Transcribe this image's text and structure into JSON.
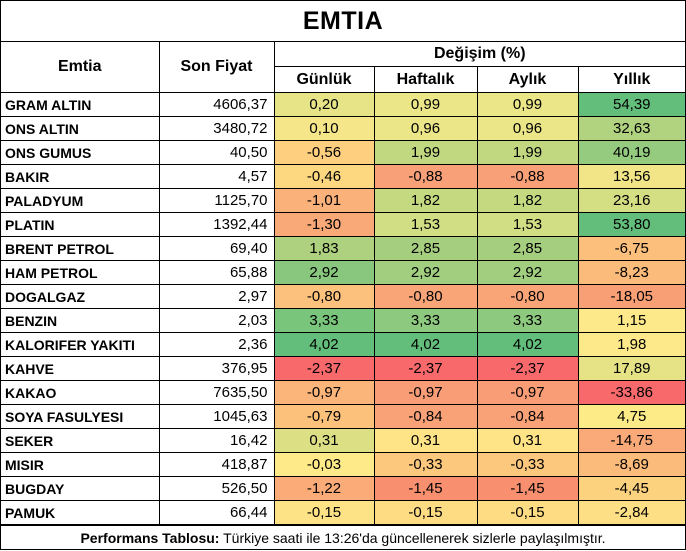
{
  "title": "EMTIA",
  "headers": {
    "emtia": "Emtia",
    "son_fiyat": "Son Fiyat",
    "degisim": "Değişim (%)",
    "gunluk": "Günlük",
    "haftalik": "Haftalık",
    "aylik": "Aylık",
    "yillik": "Yıllık"
  },
  "rows": [
    {
      "name": "GRAM ALTIN",
      "price": "4606,37",
      "cells": [
        {
          "v": "0,20",
          "c": "#e7e387"
        },
        {
          "v": "0,99",
          "c": "#ebe688"
        },
        {
          "v": "0,99",
          "c": "#ebe688"
        },
        {
          "v": "54,39",
          "c": "#63be7b"
        }
      ]
    },
    {
      "name": "ONS ALTIN",
      "price": "3480,72",
      "cells": [
        {
          "v": "0,10",
          "c": "#f6e68a"
        },
        {
          "v": "0,96",
          "c": "#ebe688"
        },
        {
          "v": "0,96",
          "c": "#ebe688"
        },
        {
          "v": "32,63",
          "c": "#b1d380"
        }
      ]
    },
    {
      "name": "ONS GUMUS",
      "price": "40,50",
      "cells": [
        {
          "v": "-0,56",
          "c": "#fdcf7e"
        },
        {
          "v": "1,99",
          "c": "#c1d880"
        },
        {
          "v": "1,99",
          "c": "#c1d880"
        },
        {
          "v": "40,19",
          "c": "#94cb7e"
        }
      ]
    },
    {
      "name": "BAKIR",
      "price": "4,57",
      "cells": [
        {
          "v": "-0,46",
          "c": "#fdd880"
        },
        {
          "v": "-0,88",
          "c": "#f8a077"
        },
        {
          "v": "-0,88",
          "c": "#f8a077"
        },
        {
          "v": "13,56",
          "c": "#f1e588"
        }
      ]
    },
    {
      "name": "PALADYUM",
      "price": "1125,70",
      "cells": [
        {
          "v": "-1,01",
          "c": "#fbb17a"
        },
        {
          "v": "1,82",
          "c": "#c5d981"
        },
        {
          "v": "1,82",
          "c": "#c5d981"
        },
        {
          "v": "23,16",
          "c": "#d4de83"
        }
      ]
    },
    {
      "name": "PLATIN",
      "price": "1392,44",
      "cells": [
        {
          "v": "-1,30",
          "c": "#f9a877"
        },
        {
          "v": "1,53",
          "c": "#d2de84"
        },
        {
          "v": "1,53",
          "c": "#d2de84"
        },
        {
          "v": "53,80",
          "c": "#63be7b"
        }
      ]
    },
    {
      "name": "BRENT PETROL",
      "price": "69,40",
      "cells": [
        {
          "v": "1,83",
          "c": "#aed17f"
        },
        {
          "v": "2,85",
          "c": "#a5cf7f"
        },
        {
          "v": "2,85",
          "c": "#a5cf7f"
        },
        {
          "v": "-6,75",
          "c": "#fcc07c"
        }
      ]
    },
    {
      "name": "HAM PETROL",
      "price": "65,88",
      "cells": [
        {
          "v": "2,92",
          "c": "#88c77d"
        },
        {
          "v": "2,92",
          "c": "#a2ce7f"
        },
        {
          "v": "2,92",
          "c": "#a2ce7f"
        },
        {
          "v": "-8,23",
          "c": "#fbbb7b"
        }
      ]
    },
    {
      "name": "DOGALGAZ",
      "price": "2,97",
      "cells": [
        {
          "v": "-0,80",
          "c": "#fcc17c"
        },
        {
          "v": "-0,80",
          "c": "#f9a577"
        },
        {
          "v": "-0,80",
          "c": "#f9a577"
        },
        {
          "v": "-18,05",
          "c": "#f99f76"
        }
      ]
    },
    {
      "name": "BENZIN",
      "price": "2,03",
      "cells": [
        {
          "v": "3,33",
          "c": "#7ac57c"
        },
        {
          "v": "3,33",
          "c": "#8dc97e"
        },
        {
          "v": "3,33",
          "c": "#8dc97e"
        },
        {
          "v": "1,15",
          "c": "#fde98a"
        }
      ]
    },
    {
      "name": "KALORIFER YAKITI",
      "price": "2,36",
      "cells": [
        {
          "v": "4,02",
          "c": "#63be7b"
        },
        {
          "v": "4,02",
          "c": "#63be7b"
        },
        {
          "v": "4,02",
          "c": "#63be7b"
        },
        {
          "v": "1,98",
          "c": "#fde98a"
        }
      ]
    },
    {
      "name": "KAHVE",
      "price": "376,95",
      "cells": [
        {
          "v": "-2,37",
          "c": "#f8696b"
        },
        {
          "v": "-2,37",
          "c": "#f8696b"
        },
        {
          "v": "-2,37",
          "c": "#f8696b"
        },
        {
          "v": "17,89",
          "c": "#e5e386"
        }
      ]
    },
    {
      "name": "KAKAO",
      "price": "7635,50",
      "cells": [
        {
          "v": "-0,97",
          "c": "#fbb47a"
        },
        {
          "v": "-0,97",
          "c": "#f89d76"
        },
        {
          "v": "-0,97",
          "c": "#f89d76"
        },
        {
          "v": "-33,86",
          "c": "#f8696b"
        }
      ]
    },
    {
      "name": "SOYA FASULYESI",
      "price": "1045,63",
      "cells": [
        {
          "v": "-0,79",
          "c": "#fcc27c"
        },
        {
          "v": "-0,84",
          "c": "#f9a277"
        },
        {
          "v": "-0,84",
          "c": "#f9a277"
        },
        {
          "v": "4,75",
          "c": "#fdeb88"
        }
      ]
    },
    {
      "name": "SEKER",
      "price": "16,42",
      "cells": [
        {
          "v": "0,31",
          "c": "#dcdf84"
        },
        {
          "v": "0,31",
          "c": "#fee487"
        },
        {
          "v": "0,31",
          "c": "#fee487"
        },
        {
          "v": "-14,75",
          "c": "#faaa78"
        }
      ]
    },
    {
      "name": "MISIR",
      "price": "418,87",
      "cells": [
        {
          "v": "-0,03",
          "c": "#feea89"
        },
        {
          "v": "-0,33",
          "c": "#fcc87d"
        },
        {
          "v": "-0,33",
          "c": "#fcc87d"
        },
        {
          "v": "-8,69",
          "c": "#fbbb7b"
        }
      ]
    },
    {
      "name": "BUGDAY",
      "price": "526,50",
      "cells": [
        {
          "v": "-1,22",
          "c": "#faab78"
        },
        {
          "v": "-1,45",
          "c": "#f8906f"
        },
        {
          "v": "-1,45",
          "c": "#f8906f"
        },
        {
          "v": "-4,45",
          "c": "#fdd27f"
        }
      ]
    },
    {
      "name": "PAMUK",
      "price": "66,44",
      "cells": [
        {
          "v": "-0,15",
          "c": "#fde286"
        },
        {
          "v": "-0,15",
          "c": "#fddc83"
        },
        {
          "v": "-0,15",
          "c": "#fddc83"
        },
        {
          "v": "-2,84",
          "c": "#fde086"
        }
      ]
    }
  ],
  "footer": {
    "bold": "Performans Tablosu:",
    "text": " Türkiye saati ile 13:26'da güncellenerek sizlerle paylaşılmıştır."
  }
}
